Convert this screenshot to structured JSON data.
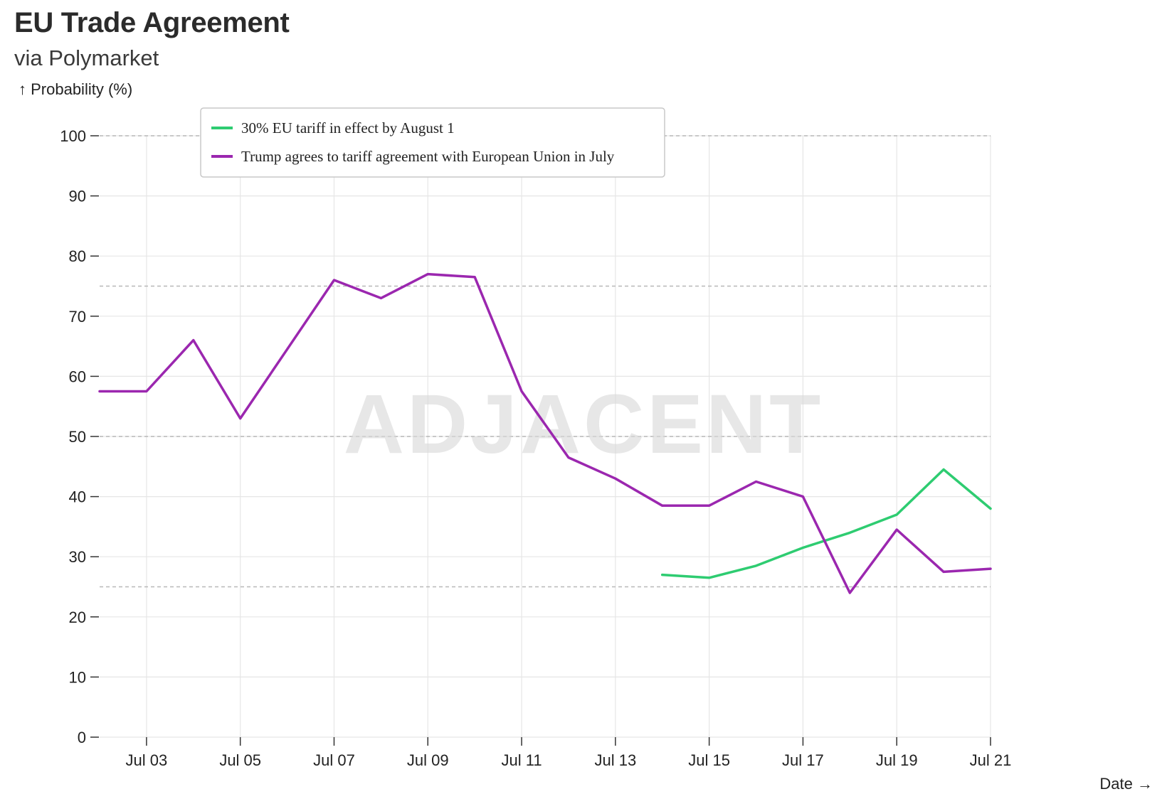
{
  "header": {
    "title": "EU Trade Agreement",
    "subtitle": "via Polymarket"
  },
  "watermark": "ADJACENT",
  "chart_data": {
    "type": "line",
    "title": "EU Trade Agreement",
    "subtitle": "via Polymarket",
    "ylabel": "↑ Probability (%)",
    "xlabel": "Date →",
    "ylim": [
      0,
      100
    ],
    "yticks": [
      0,
      10,
      20,
      30,
      40,
      50,
      60,
      70,
      80,
      90,
      100
    ],
    "x": [
      "Jul 02",
      "Jul 03",
      "Jul 04",
      "Jul 05",
      "Jul 06",
      "Jul 07",
      "Jul 08",
      "Jul 09",
      "Jul 10",
      "Jul 11",
      "Jul 12",
      "Jul 13",
      "Jul 14",
      "Jul 15",
      "Jul 16",
      "Jul 17",
      "Jul 18",
      "Jul 19",
      "Jul 20",
      "Jul 21"
    ],
    "xticks": [
      "Jul 03",
      "Jul 05",
      "Jul 07",
      "Jul 09",
      "Jul 11",
      "Jul 13",
      "Jul 15",
      "Jul 17",
      "Jul 19",
      "Jul 21"
    ],
    "grid": true,
    "reference_lines_y": [
      25,
      50,
      75,
      100
    ],
    "legend_position": "top-left",
    "series": [
      {
        "name": "30% EU tariff in effect by August 1",
        "color": "#2ecc71",
        "values": [
          null,
          null,
          null,
          null,
          null,
          null,
          null,
          null,
          null,
          null,
          null,
          null,
          27,
          26.5,
          28.5,
          31.5,
          34,
          37,
          44.5,
          38
        ]
      },
      {
        "name": "Trump agrees to tariff agreement with European Union in July",
        "color": "#9b27af",
        "values": [
          57.5,
          57.5,
          66,
          53,
          64.5,
          76,
          73,
          77,
          76.5,
          57.5,
          46.5,
          43,
          38.5,
          38.5,
          42.5,
          40,
          24,
          34.5,
          27.5,
          28
        ]
      }
    ]
  }
}
